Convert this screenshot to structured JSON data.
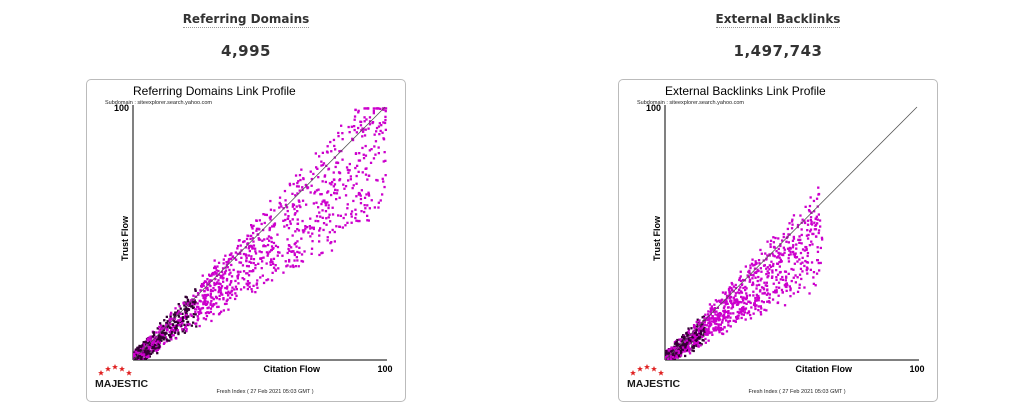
{
  "left": {
    "metric_title": "Referring Domains",
    "metric_value": "4,995"
  },
  "right": {
    "metric_title": "External Backlinks",
    "metric_value": "1,497,743"
  },
  "logo": {
    "text": "MAJESTIC",
    "icon": "star-arc-icon",
    "star_color": "#e02020"
  },
  "colors": {
    "points": "#cc00cc",
    "dense": "#330033",
    "diagonal": "#555555"
  },
  "chart_data": [
    {
      "type": "scatter",
      "title": "Referring Domains Link Profile",
      "subtitle": "Subdomain : siteexplorer.search.yahoo.com",
      "xlabel": "Citation Flow",
      "ylabel": "Trust Flow",
      "xlim": [
        0,
        100
      ],
      "ylim": [
        0,
        100
      ],
      "x_tick_labels": [
        "100"
      ],
      "y_tick_labels": [
        "100"
      ],
      "reference_line": "diagonal",
      "footer": "Fresh Index ( 27 Feb 2021 05:03 GMT )",
      "distribution": {
        "seed": 7,
        "count": 1400,
        "x_max": 100,
        "ratio_mean": 0.85,
        "ratio_spread": 0.28,
        "x_bias": 1.6
      }
    },
    {
      "type": "scatter",
      "title": "External Backlinks Link Profile",
      "subtitle": "Subdomain : siteexplorer.search.yahoo.com",
      "xlabel": "Citation Flow",
      "ylabel": "Trust Flow",
      "xlim": [
        0,
        100
      ],
      "ylim": [
        0,
        100
      ],
      "x_tick_labels": [
        "100"
      ],
      "y_tick_labels": [
        "100"
      ],
      "reference_line": "diagonal",
      "footer": "Fresh Index ( 27 Feb 2021 05:03 GMT )",
      "distribution": {
        "seed": 13,
        "count": 1300,
        "x_max": 62,
        "ratio_mean": 0.8,
        "ratio_spread": 0.3,
        "x_bias": 1.9
      }
    }
  ]
}
